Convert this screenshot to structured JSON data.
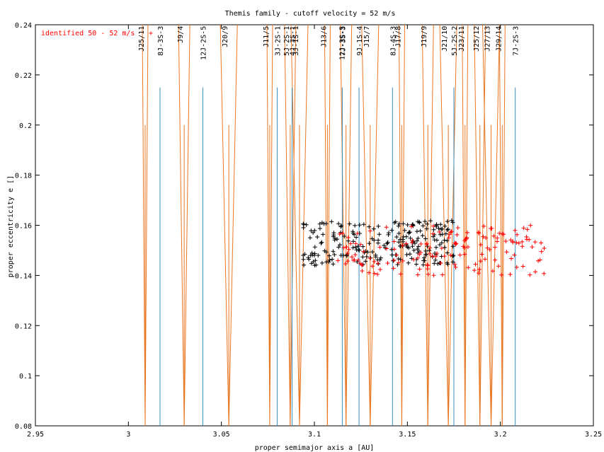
{
  "chart_data": {
    "type": "scatter",
    "title": "Themis family - cutoff velocity = 52 m/s",
    "xlabel": "proper semimajor axis a [AU]",
    "ylabel": "proper eccentricity e []",
    "xlim": [
      2.95,
      3.25
    ],
    "ylim": [
      0.08,
      0.24
    ],
    "xticks": [
      "2.95",
      "3",
      "3.05",
      "3.1",
      "3.15",
      "3.2",
      "3.25"
    ],
    "yticks": [
      "0.08",
      "0.1",
      "0.12",
      "0.14",
      "0.16",
      "0.18",
      "0.2",
      "0.22",
      "0.24"
    ],
    "grid": false,
    "legend": [
      {
        "label": "identified 50 - 52 m/s",
        "color": "#ff0000",
        "marker": "+",
        "placement": "top-left"
      }
    ],
    "resonances_jupiter": [
      {
        "label": "J25/11",
        "a": 3.009
      },
      {
        "label": "J9/4",
        "a": 3.03
      },
      {
        "label": "J20/9",
        "a": 3.054
      },
      {
        "label": "J11/5",
        "a": 3.076
      },
      {
        "label": "5J-2S-1",
        "a": 3.087
      },
      {
        "label": "3J-1S-1",
        "a": 3.092
      },
      {
        "label": "J13/6",
        "a": 3.107
      },
      {
        "label": "12J-3S-5",
        "a": 3.117
      },
      {
        "label": "J15/7",
        "a": 3.13
      },
      {
        "label": "J17/8",
        "a": 3.147
      },
      {
        "label": "J19/9",
        "a": 3.161
      },
      {
        "label": "J21/10",
        "a": 3.172
      },
      {
        "label": "J23/11",
        "a": 3.181
      },
      {
        "label": "J25/12",
        "a": 3.189
      },
      {
        "label": "J27/13",
        "a": 3.195
      },
      {
        "label": "J29/14",
        "a": 3.201
      }
    ],
    "resonances_three_body": [
      {
        "label": "8J-3S-3",
        "a": 3.017
      },
      {
        "label": "12J-2S-5",
        "a": 3.04
      },
      {
        "label": "3J-2S-1",
        "a": 3.08
      },
      {
        "label": "4J-3S-1",
        "a": 3.088
      },
      {
        "label": "9J-1S-4",
        "a": 3.124
      },
      {
        "label": "8J-4S-3",
        "a": 3.142
      },
      {
        "label": "5J-2S-2",
        "a": 3.175
      },
      {
        "label": "7J-2S-3",
        "a": 3.208
      },
      {
        "label": "7J-3S-3",
        "a": 3.115
      }
    ],
    "cluster_black": {
      "color": "#000000",
      "a_range": [
        3.094,
        3.175
      ],
      "e_range": [
        0.144,
        0.162
      ],
      "count": 230,
      "extra_points": [
        [
          3.094,
          0.148
        ],
        [
          3.098,
          0.148
        ],
        [
          3.1,
          0.148
        ],
        [
          3.102,
          0.148
        ]
      ]
    },
    "cluster_red": {
      "color": "#ff0000",
      "a_range": [
        3.112,
        3.224
      ],
      "e_range": [
        0.14,
        0.16
      ],
      "count": 160
    }
  }
}
